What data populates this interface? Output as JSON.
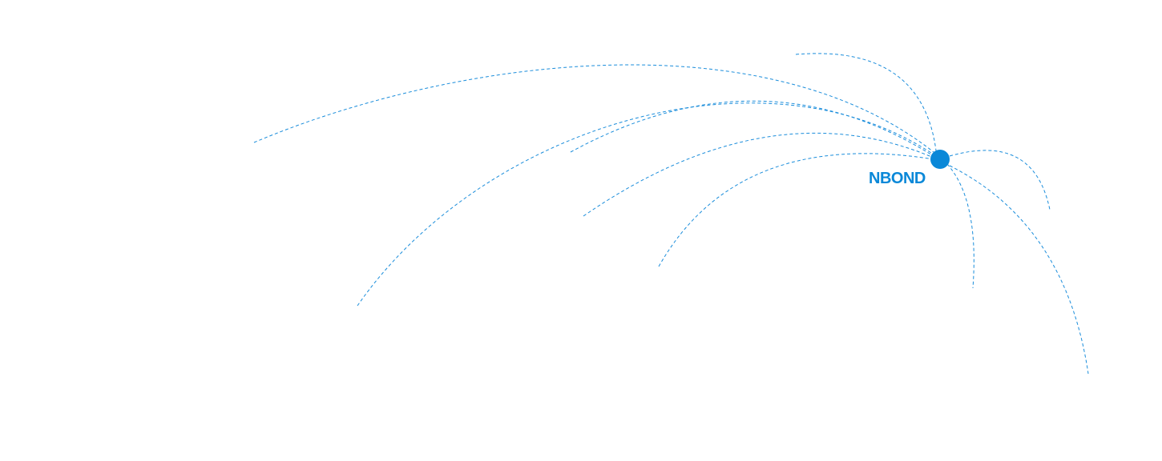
{
  "hub": {
    "label": "NBOND",
    "color": "#0a88d8"
  },
  "edge_color": "#1a8ddb"
}
